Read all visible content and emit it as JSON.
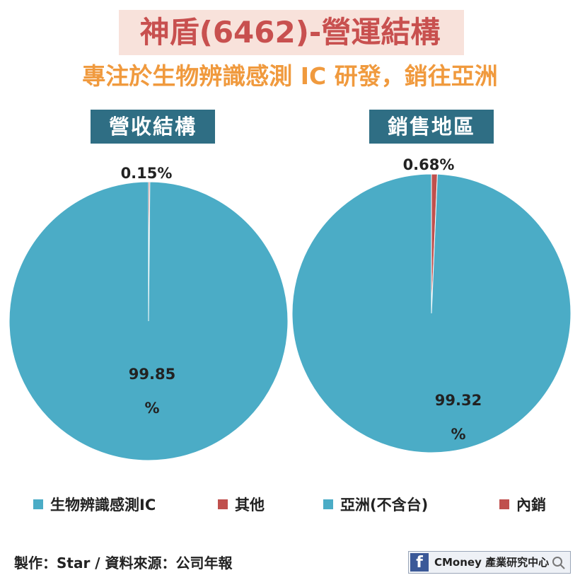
{
  "title": "神盾(6462)-營運結構",
  "subtitle": "專注於生物辨識感測 IC 研發，銷往亞洲",
  "colors": {
    "teal": "#4bacc6",
    "red": "#c0504d",
    "label_bg": "#2f6e84",
    "title_red": "#c8504f",
    "subtitle_orange": "#f09a3e",
    "title_bg": "#f8e2db"
  },
  "chart_data": [
    {
      "type": "pie",
      "title": "營收結構",
      "slices": [
        {
          "label": "生物辨識感測IC",
          "value": 99.85,
          "color": "#4bacc6",
          "data_label_line1": "99.85",
          "data_label_line2": "%"
        },
        {
          "label": "其他",
          "value": 0.15,
          "color": "#c0504d",
          "data_label_line1": "0.15%"
        }
      ]
    },
    {
      "type": "pie",
      "title": "銷售地區",
      "slices": [
        {
          "label": "亞洲(不含台)",
          "value": 99.32,
          "color": "#4bacc6",
          "data_label_line1": "99.32",
          "data_label_line2": "%"
        },
        {
          "label": "內銷",
          "value": 0.68,
          "color": "#c0504d",
          "data_label_line1": "0.68%"
        }
      ]
    }
  ],
  "legend": [
    {
      "label": "生物辨識感測IC",
      "color": "#4bacc6"
    },
    {
      "label": "其他",
      "color": "#c0504d"
    },
    {
      "label": "亞洲(不含台)",
      "color": "#4bacc6"
    },
    {
      "label": "內銷",
      "color": "#c0504d"
    }
  ],
  "footer": "製作：Star / 資料來源：公司年報",
  "brand": {
    "icon": "facebook-icon",
    "text": "CMoney 產業研究中心",
    "search_icon": "search-icon"
  }
}
